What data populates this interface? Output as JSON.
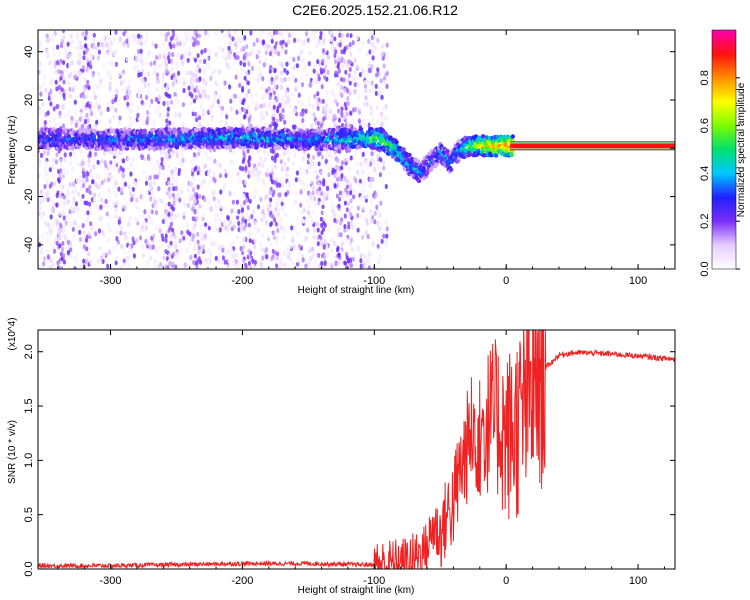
{
  "title": "C2E6.2025.152.21.06.R12",
  "colorbar": {
    "label": "Normalized spectral amplitude",
    "ticks": [
      "0.0",
      "0.2",
      "0.4",
      "0.6",
      "0.8"
    ],
    "tick_values": [
      0,
      0.2,
      0.4,
      0.6,
      0.8
    ],
    "stops": [
      "#ffffff",
      "#e6ccff",
      "#7b2ff7",
      "#2020ff",
      "#00c8ff",
      "#00e070",
      "#7cfc00",
      "#ffff00",
      "#ff8c00",
      "#ff1010",
      "#ff00b0"
    ]
  },
  "chart_data": [
    {
      "type": "heatmap",
      "title": "",
      "xlabel": "Height of straight line (km)",
      "ylabel": "Frequency (Hz)",
      "xlim": [
        -355,
        128
      ],
      "ylim": [
        -50,
        49
      ],
      "xticks": [
        -300,
        -200,
        -100,
        0,
        100
      ],
      "yticks": [
        -40,
        -20,
        0,
        20,
        40
      ],
      "xtick_labels": [
        "-300",
        "-200",
        "-100",
        "0",
        "100"
      ],
      "ytick_labels": [
        "-40",
        "-20",
        "0",
        "20",
        "40"
      ],
      "ridge": {
        "x": [
          -355,
          -300,
          -250,
          -200,
          -150,
          -110,
          -95,
          -85,
          -75,
          -65,
          -58,
          -50,
          -42,
          -35,
          -25,
          -15,
          -5,
          5,
          128
        ],
        "y": [
          4,
          3.5,
          4,
          4.5,
          3.5,
          4,
          4,
          0,
          -6,
          -10,
          -6,
          -2,
          -6,
          0,
          1,
          1,
          1,
          1,
          1
        ],
        "amplitude": [
          0.3,
          0.3,
          0.35,
          0.4,
          0.35,
          0.45,
          0.6,
          0.5,
          0.4,
          0.35,
          0.3,
          0.35,
          0.35,
          0.4,
          0.6,
          0.7,
          0.8,
          0.9,
          0.9
        ]
      }
    },
    {
      "type": "line",
      "title": "",
      "xlabel": "Height of straight line (km)",
      "ylabel": "SNR (10 * v/v)",
      "y_multiplier": "(x10^4)",
      "xlim": [
        -355,
        128
      ],
      "ylim": [
        0,
        2.2
      ],
      "xticks": [
        -300,
        -200,
        -100,
        0,
        100
      ],
      "yticks": [
        0,
        0.5,
        1.0,
        1.5,
        2.0
      ],
      "xtick_labels": [
        "-300",
        "-200",
        "-100",
        "0",
        "100"
      ],
      "ytick_labels": [
        "0.0",
        "0.5",
        "1.0",
        "1.5",
        "2.0"
      ],
      "series": [
        {
          "color": "#ee2222",
          "x": [
            -355,
            -300,
            -250,
            -200,
            -150,
            -110,
            -100,
            -80,
            -70,
            -60,
            -55,
            -50,
            -45,
            -40,
            -35,
            -30,
            -25,
            -20,
            -15,
            -10,
            -5,
            0,
            10,
            20,
            30,
            40,
            50,
            60,
            80,
            100,
            128
          ],
          "y": [
            0.02,
            0.02,
            0.03,
            0.04,
            0.04,
            0.03,
            0.03,
            0.05,
            0.1,
            0.2,
            0.4,
            0.3,
            0.5,
            0.6,
            0.9,
            1.1,
            1.3,
            1.25,
            1.35,
            1.4,
            1.35,
            1.2,
            1.35,
            1.65,
            1.85,
            1.97,
            1.99,
            1.99,
            1.98,
            1.96,
            1.93
          ]
        }
      ]
    }
  ]
}
